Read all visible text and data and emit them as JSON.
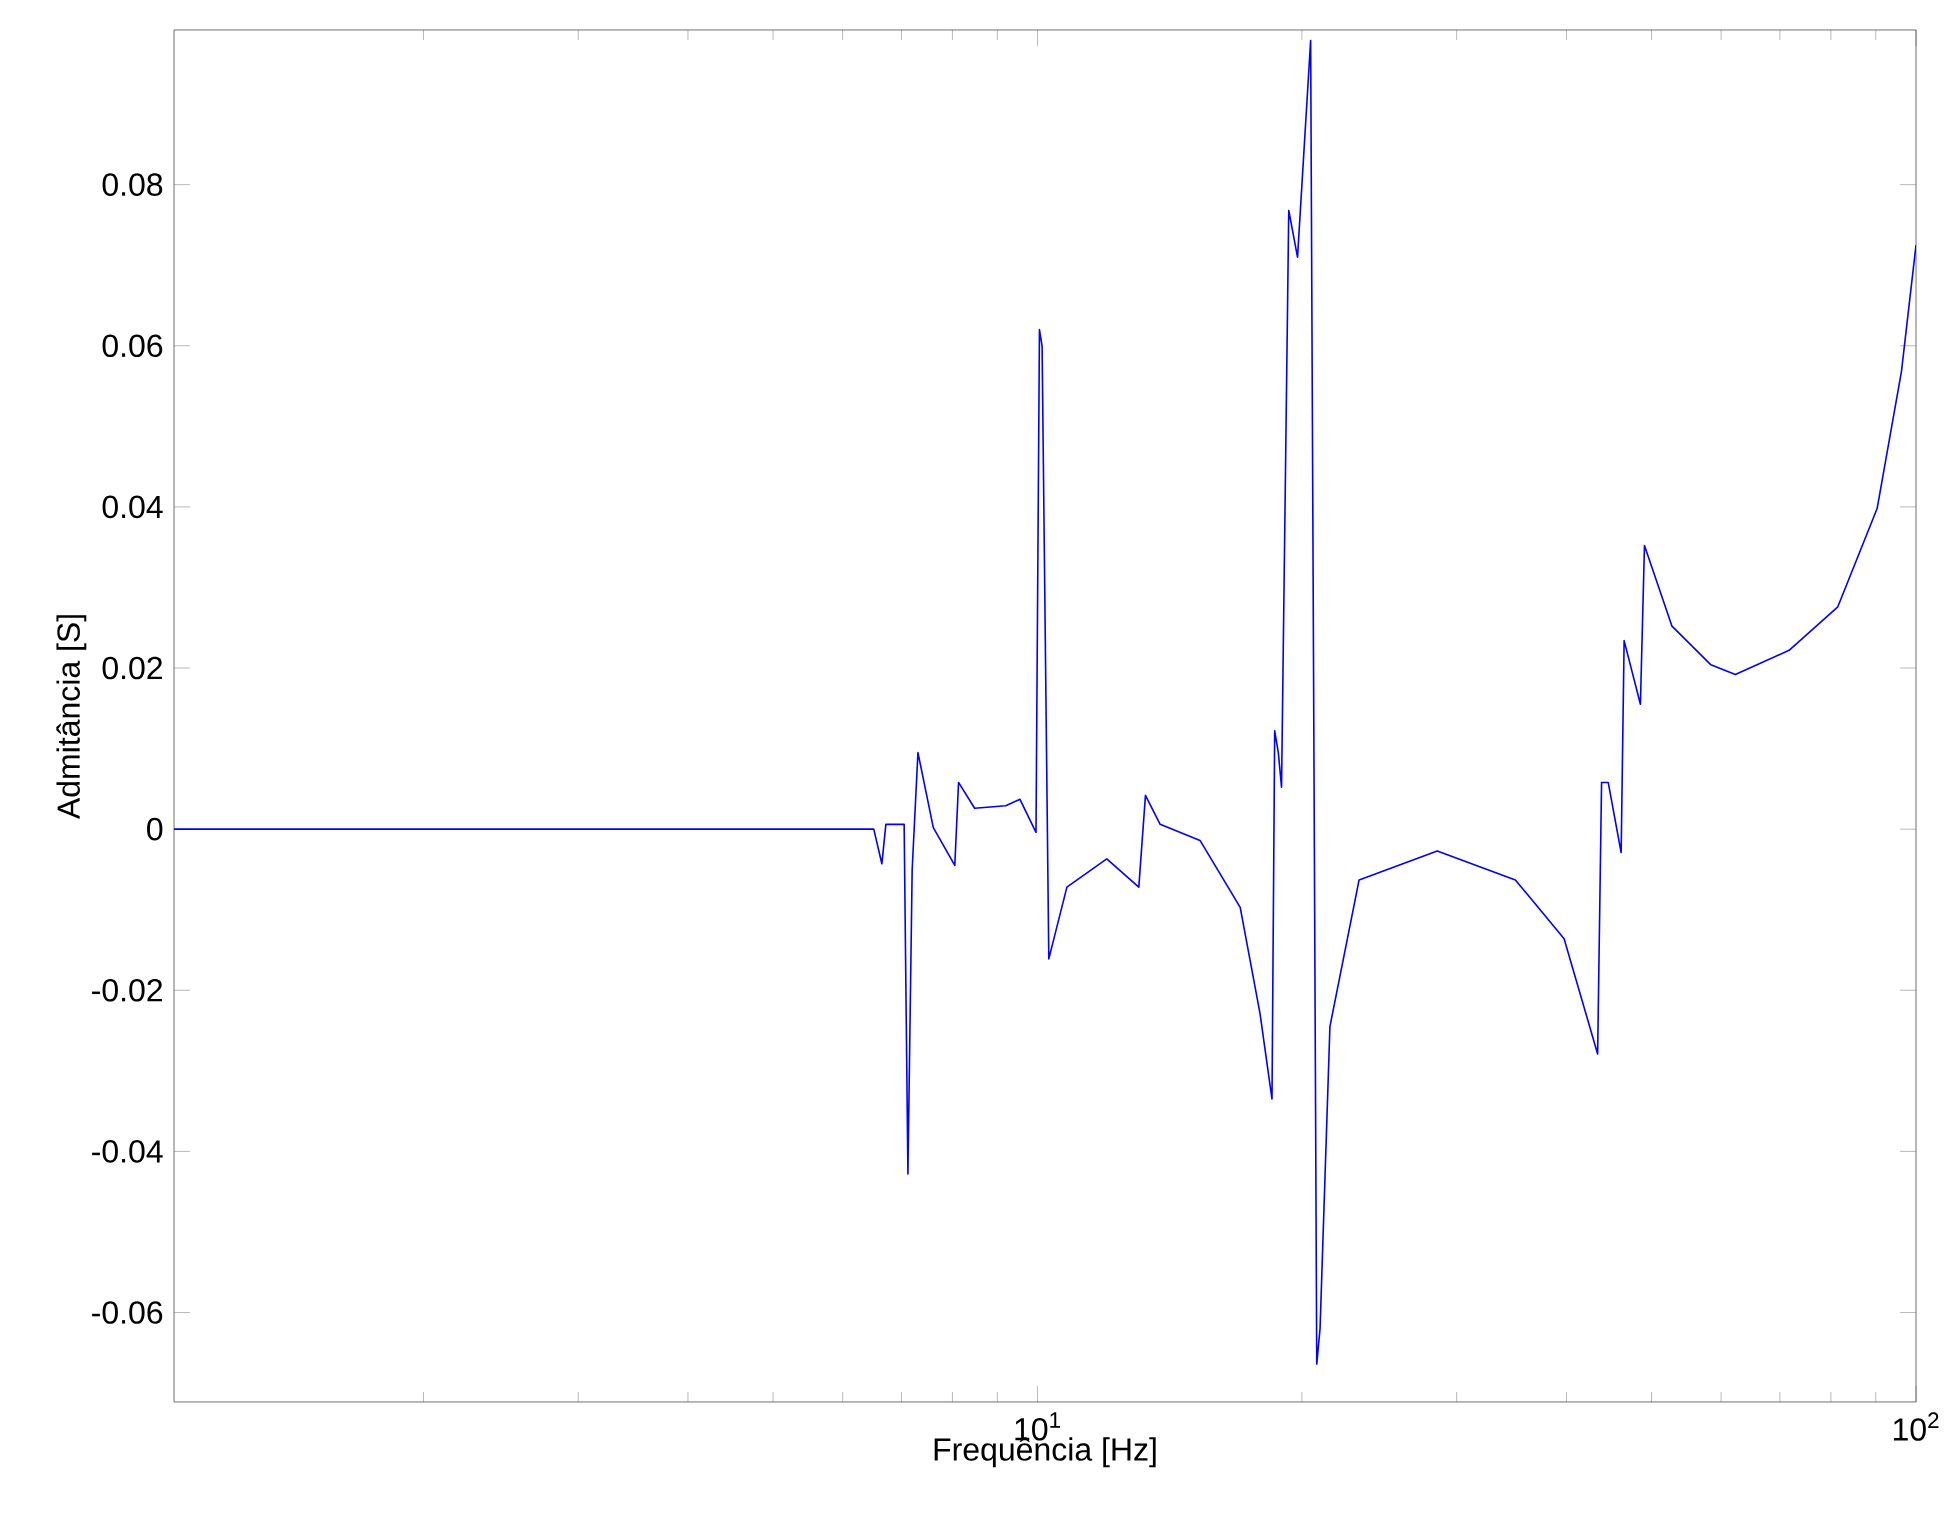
{
  "chart_data": {
    "type": "line",
    "xlabel": "Frequência [Hz]",
    "ylabel": "Admitância [S]",
    "log": "x",
    "color": "#0000ff",
    "line_style": "solid",
    "xlim": [
      1.04,
      100
    ],
    "ylim": [
      -0.0711,
      0.0992
    ],
    "xticks": [
      {
        "value": 2,
        "label": null
      },
      {
        "value": 3,
        "label": null
      },
      {
        "value": 4,
        "label": null
      },
      {
        "value": 5,
        "label": null
      },
      {
        "value": 6,
        "label": null
      },
      {
        "value": 7,
        "label": null
      },
      {
        "value": 8,
        "label": null
      },
      {
        "value": 9,
        "label": null
      },
      {
        "value": 10,
        "label": "10$^{1}$"
      },
      {
        "value": 20,
        "label": null
      },
      {
        "value": 30,
        "label": null
      },
      {
        "value": 40,
        "label": null
      },
      {
        "value": 50,
        "label": null
      },
      {
        "value": 60,
        "label": null
      },
      {
        "value": 70,
        "label": null
      },
      {
        "value": 80,
        "label": null
      },
      {
        "value": 90,
        "label": null
      },
      {
        "value": 100,
        "label": "10$^{2}$"
      }
    ],
    "yticks": [
      -0.06,
      -0.04,
      -0.02,
      0,
      0.02,
      0.04,
      0.06,
      0.08
    ],
    "x": [
      1.04,
      6.51,
      6.65,
      6.72,
      7.05,
      7.12,
      7.2,
      7.31,
      7.61,
      8.05,
      8.13,
      8.48,
      9.2,
      9.55,
      9.96,
      10.05,
      10.12,
      10.3,
      10.8,
      11.99,
      13.04,
      13.27,
      13.79,
      15.31,
      17.01,
      17.92,
      18.49,
      18.62,
      18.8,
      18.96,
      19.32,
      19.77,
      20.46,
      20.79,
      20.97,
      21.52,
      23.23,
      28.51,
      34.99,
      39.76,
      43.41,
      43.86,
      44.63,
      46.17,
      46.53,
      48.56,
      49.08,
      52.75,
      58.42,
      62.28,
      71.71,
      81.47,
      90.31,
      96.25,
      100
    ],
    "values": [
      0,
      0,
      -0.0043,
      0.0006,
      0.0006,
      -0.0428,
      -0.005,
      0.0095,
      0.0002,
      -0.0045,
      0.0058,
      0.0026,
      0.0029,
      0.0037,
      -0.0004,
      0.062,
      0.06,
      -0.0161,
      -0.0072,
      -0.0037,
      -0.0072,
      0.0042,
      0.0006,
      -0.0014,
      -0.0097,
      -0.0229,
      -0.0335,
      0.0122,
      0.0095,
      0.0052,
      0.0768,
      0.071,
      0.0979,
      -0.0664,
      -0.062,
      -0.0245,
      -0.0063,
      -0.0027,
      -0.0063,
      -0.0136,
      -0.0279,
      0.0058,
      0.0058,
      -0.0029,
      0.0234,
      0.0155,
      0.0352,
      0.0252,
      0.0204,
      0.0192,
      0.0222,
      0.0276,
      0.0398,
      0.0568,
      0.0725
    ]
  }
}
